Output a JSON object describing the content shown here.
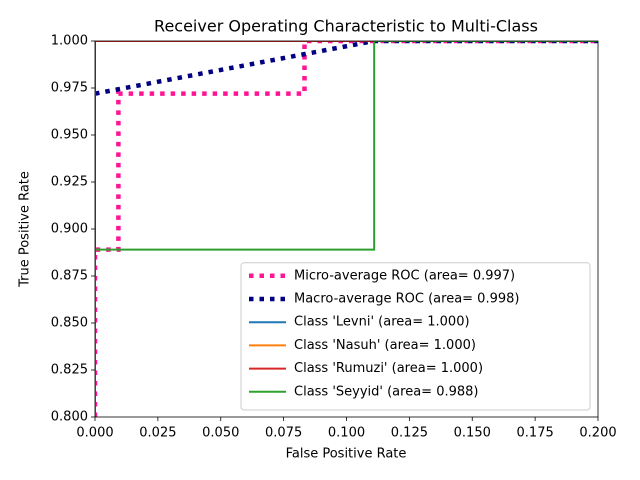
{
  "chart_data": {
    "type": "line",
    "title": "Receiver Operating Characteristic to Multi-Class",
    "x_label": "False Positive Rate",
    "y_label": "True Positive Rate",
    "xlim": [
      0,
      0.2
    ],
    "ylim": [
      0.8,
      1.0
    ],
    "xticks": [
      {
        "value": 0,
        "label": "0.000"
      },
      {
        "value": 0.025,
        "label": "0.025"
      },
      {
        "value": 0.05,
        "label": "0.050"
      },
      {
        "value": 0.075,
        "label": "0.075"
      },
      {
        "value": 0.1,
        "label": "0.100"
      },
      {
        "value": 0.125,
        "label": "0.125"
      },
      {
        "value": 0.15,
        "label": "0.150"
      },
      {
        "value": 0.175,
        "label": "0.175"
      },
      {
        "value": 0.2,
        "label": "0.200"
      }
    ],
    "yticks": [
      {
        "value": 0.8,
        "label": "0.800"
      },
      {
        "value": 0.825,
        "label": "0.825"
      },
      {
        "value": 0.85,
        "label": "0.850"
      },
      {
        "value": 0.875,
        "label": "0.875"
      },
      {
        "value": 0.9,
        "label": "0.900"
      },
      {
        "value": 0.925,
        "label": "0.925"
      },
      {
        "value": 0.95,
        "label": "0.950"
      },
      {
        "value": 0.975,
        "label": "0.975"
      },
      {
        "value": 1.0,
        "label": "1.000"
      }
    ],
    "legend": "lower right",
    "series": [
      {
        "name": "Micro-average ROC (area= 0.997)",
        "color": "#ff1493",
        "linestyle": "dotted",
        "x": [
          0,
          0,
          0.0093,
          0.0093,
          0.0833,
          0.0833,
          0.2
        ],
        "values": [
          0.8,
          0.889,
          0.889,
          0.972,
          0.972,
          1.0,
          1.0
        ]
      },
      {
        "name": "Macro-average ROC (area= 0.998)",
        "color": "#000080",
        "linestyle": "dotted",
        "x": [
          0,
          0.111,
          0.2
        ],
        "values": [
          0.972,
          1.0,
          1.0
        ]
      },
      {
        "name": "Class 'Levni' (area= 1.000)",
        "color": "#1f77b4",
        "linestyle": "solid",
        "x": [
          0,
          0,
          0.2
        ],
        "values": [
          0.8,
          1.0,
          1.0
        ]
      },
      {
        "name": "Class 'Nasuh' (area= 1.000)",
        "color": "#ff7f0e",
        "linestyle": "solid",
        "x": [
          0,
          0,
          0.2
        ],
        "values": [
          0.8,
          1.0,
          1.0
        ]
      },
      {
        "name": "Class 'Rumuzi' (area= 1.000)",
        "color": "#d62728",
        "linestyle": "solid",
        "x": [
          0,
          0,
          0.2
        ],
        "values": [
          0.8,
          1.0,
          1.0
        ]
      },
      {
        "name": "Class 'Seyyid' (area= 0.988)",
        "color": "#2ca02c",
        "linestyle": "solid",
        "x": [
          0,
          0,
          0.111,
          0.111,
          0.2
        ],
        "values": [
          0.8,
          0.889,
          0.889,
          1.0,
          1.0
        ]
      }
    ]
  }
}
